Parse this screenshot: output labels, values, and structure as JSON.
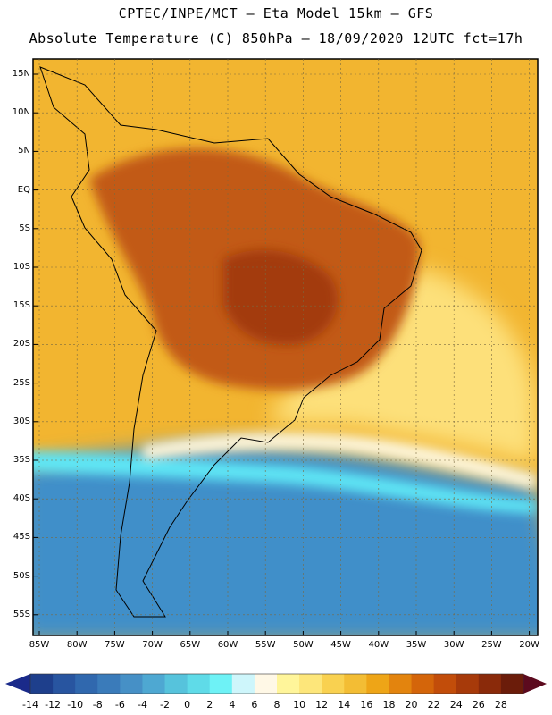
{
  "header": {
    "line1": "CPTEC/INPE/MCT –  Eta Model 15km – GFS",
    "line2": "Absolute Temperature (C) 850hPa – 18/09/2020 12UTC fct=17h"
  },
  "map": {
    "lat_labels": [
      "15N",
      "10N",
      "5N",
      "EQ",
      "5S",
      "10S",
      "15S",
      "20S",
      "25S",
      "30S",
      "35S",
      "40S",
      "45S",
      "50S",
      "55S"
    ],
    "lon_labels": [
      "85W",
      "80W",
      "75W",
      "70W",
      "65W",
      "60W",
      "55W",
      "50W",
      "45W",
      "40W",
      "35W",
      "30W",
      "25W",
      "20W"
    ],
    "ocean_color": "#f2b530",
    "land_hot_color": "#c25a12",
    "core_color": "#a33a0a",
    "cold_color": "#3f8fc9",
    "colors": {
      "very_cold": "#2f64a8",
      "cyan": "#5fe6f5",
      "pale": "#fef6dc",
      "yellow": "#fde07a"
    }
  },
  "colorbar": {
    "ticks": [
      "-14",
      "-12",
      "-10",
      "-8",
      "-6",
      "-4",
      "-2",
      "0",
      "2",
      "4",
      "6",
      "8",
      "10",
      "12",
      "14",
      "16",
      "18",
      "20",
      "22",
      "24",
      "26",
      "28"
    ],
    "colors": [
      "#1e3f8c",
      "#2855a0",
      "#3068ae",
      "#3a7bba",
      "#4690c6",
      "#4ea8d2",
      "#56c3dc",
      "#5fdbe8",
      "#6ef2f6",
      "#cef6fb",
      "#fff8e6",
      "#fff59a",
      "#fde67a",
      "#f9d150",
      "#f3bd34",
      "#eea517",
      "#e3840e",
      "#d4650a",
      "#c24d0a",
      "#a73a0a",
      "#8a2a0a",
      "#6b1c0a"
    ],
    "over_color": "#5c0a1e",
    "under_color": "#1a2a8a"
  }
}
